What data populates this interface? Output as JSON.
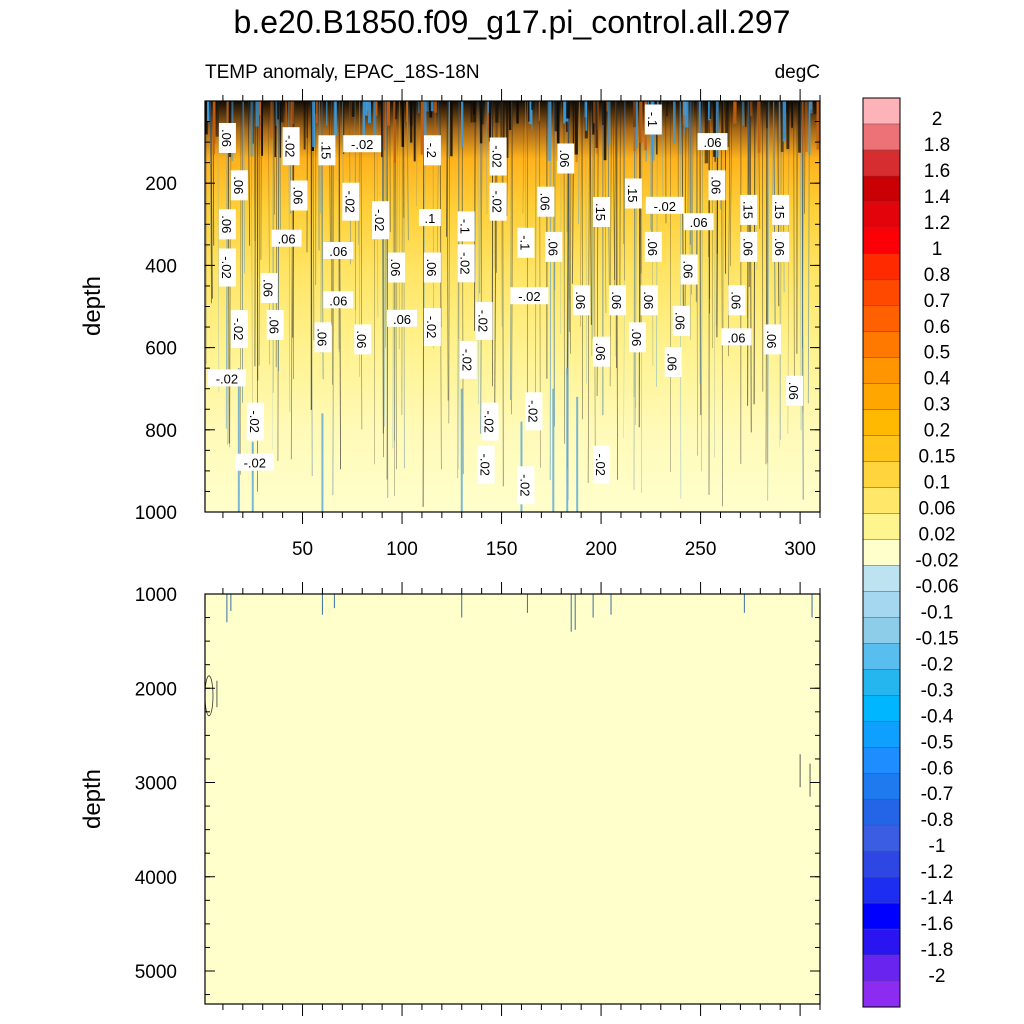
{
  "title": "b.e20.B1850.f09_g17.pi_control.all.297",
  "subtitle_left": "TEMP anomaly, EPAC_18S-18N",
  "subtitle_right": "degC",
  "chart_data": [
    {
      "type": "heatmap",
      "panel": "upper",
      "ylabel": "depth",
      "xlim": [
        1,
        310
      ],
      "ylim": [
        1000,
        0
      ],
      "x_ticks": [
        50,
        100,
        150,
        200,
        250,
        300
      ],
      "y_ticks": [
        200,
        400,
        600,
        800,
        1000
      ],
      "contour_labels": [
        {
          "text": ".06",
          "x": 12,
          "y": 90
        },
        {
          "text": "-.02",
          "x": 44,
          "y": 110
        },
        {
          "text": ".15",
          "x": 62,
          "y": 120
        },
        {
          "text": "-.02",
          "x": 80,
          "y": 105
        },
        {
          "text": "-.2",
          "x": 115,
          "y": 120
        },
        {
          "text": "-.02",
          "x": 148,
          "y": 135
        },
        {
          "text": ".06",
          "x": 182,
          "y": 140
        },
        {
          "text": "-.1",
          "x": 226,
          "y": 45
        },
        {
          "text": ".06",
          "x": 256,
          "y": 100
        },
        {
          "text": ".06",
          "x": 18,
          "y": 205
        },
        {
          "text": ".06",
          "x": 48,
          "y": 230
        },
        {
          "text": "-.02",
          "x": 74,
          "y": 245
        },
        {
          "text": "-.02",
          "x": 89,
          "y": 290
        },
        {
          "text": ".1",
          "x": 114,
          "y": 285
        },
        {
          "text": "-.02",
          "x": 148,
          "y": 245
        },
        {
          "text": ".06",
          "x": 172,
          "y": 245
        },
        {
          "text": ".15",
          "x": 200,
          "y": 270
        },
        {
          "text": ".15",
          "x": 216,
          "y": 225
        },
        {
          "text": "-.02",
          "x": 232,
          "y": 255
        },
        {
          "text": ".06",
          "x": 258,
          "y": 205
        },
        {
          "text": ".15",
          "x": 274,
          "y": 265
        },
        {
          "text": ".15",
          "x": 290,
          "y": 265
        },
        {
          "text": ".06",
          "x": 12,
          "y": 300
        },
        {
          "text": ".06",
          "x": 42,
          "y": 335
        },
        {
          "text": "-.1",
          "x": 132,
          "y": 305
        },
        {
          "text": "-.1",
          "x": 162,
          "y": 345
        },
        {
          "text": ".06",
          "x": 176,
          "y": 355
        },
        {
          "text": ".06",
          "x": 226,
          "y": 355
        },
        {
          "text": ".06",
          "x": 249,
          "y": 295
        },
        {
          "text": ".06",
          "x": 274,
          "y": 355
        },
        {
          "text": ".06",
          "x": 290,
          "y": 355
        },
        {
          "text": "-.02",
          "x": 12,
          "y": 405
        },
        {
          "text": ".06",
          "x": 33,
          "y": 455
        },
        {
          "text": ".06",
          "x": 68,
          "y": 365
        },
        {
          "text": ".06",
          "x": 97,
          "y": 405
        },
        {
          "text": ".06",
          "x": 115,
          "y": 405
        },
        {
          "text": "-.02",
          "x": 132,
          "y": 395
        },
        {
          "text": ".06",
          "x": 244,
          "y": 410
        },
        {
          "text": "-.02",
          "x": 164,
          "y": 475
        },
        {
          "text": ".06",
          "x": 190,
          "y": 485
        },
        {
          "text": ".06",
          "x": 208,
          "y": 485
        },
        {
          "text": ".06",
          "x": 224,
          "y": 485
        },
        {
          "text": ".06",
          "x": 268,
          "y": 485
        },
        {
          "text": ".06",
          "x": 68,
          "y": 485
        },
        {
          "text": "-.02",
          "x": 18,
          "y": 555
        },
        {
          "text": ".06",
          "x": 36,
          "y": 545
        },
        {
          "text": ".06",
          "x": 60,
          "y": 575
        },
        {
          "text": ".06",
          "x": 80,
          "y": 580
        },
        {
          "text": ".06",
          "x": 100,
          "y": 530
        },
        {
          "text": "-.02",
          "x": 115,
          "y": 550
        },
        {
          "text": "-.02",
          "x": 141,
          "y": 535
        },
        {
          "text": ".06",
          "x": 218,
          "y": 575
        },
        {
          "text": ".06",
          "x": 240,
          "y": 535
        },
        {
          "text": ".06",
          "x": 268,
          "y": 575
        },
        {
          "text": ".06",
          "x": 286,
          "y": 580
        },
        {
          "text": "-.02",
          "x": 133,
          "y": 630
        },
        {
          "text": ".06",
          "x": 200,
          "y": 610
        },
        {
          "text": ".06",
          "x": 236,
          "y": 635
        },
        {
          "text": "-.02",
          "x": 12,
          "y": 675
        },
        {
          "text": ".06",
          "x": 297,
          "y": 705
        },
        {
          "text": "-.02",
          "x": 26,
          "y": 780
        },
        {
          "text": "-.02",
          "x": 144,
          "y": 780
        },
        {
          "text": "-.02",
          "x": 166,
          "y": 755
        },
        {
          "text": "-.02",
          "x": 26,
          "y": 880
        },
        {
          "text": "-.02",
          "x": 142,
          "y": 885
        },
        {
          "text": "-.02",
          "x": 200,
          "y": 885
        },
        {
          "text": "-.02",
          "x": 162,
          "y": 935
        }
      ]
    },
    {
      "type": "heatmap",
      "panel": "lower",
      "ylabel": "depth",
      "xlim": [
        1,
        310
      ],
      "ylim": [
        5350,
        1000
      ],
      "y_ticks": [
        1000,
        2000,
        3000,
        4000,
        5000
      ]
    }
  ],
  "colorbar": {
    "labels": [
      "2",
      "1.8",
      "1.6",
      "1.4",
      "1.2",
      "1",
      "0.8",
      "0.7",
      "0.6",
      "0.5",
      "0.4",
      "0.3",
      "0.2",
      "0.15",
      "0.1",
      "0.06",
      "0.02",
      "-0.02",
      "-0.06",
      "-0.1",
      "-0.15",
      "-0.2",
      "-0.3",
      "-0.4",
      "-0.5",
      "-0.6",
      "-0.7",
      "-0.8",
      "-1",
      "-1.2",
      "-1.4",
      "-1.6",
      "-1.8",
      "-2"
    ],
    "colors": [
      "#fdb3b8",
      "#ec7278",
      "#d62d30",
      "#c80006",
      "#e3040b",
      "#fb0006",
      "#ff2a00",
      "#ff4800",
      "#ff6000",
      "#ff7900",
      "#ff9500",
      "#ffa600",
      "#ffb900",
      "#ffc51a",
      "#ffd43c",
      "#ffe76a",
      "#fff58e",
      "#ffffcb",
      "#bde3f1",
      "#a5d8f0",
      "#8ecde9",
      "#58bef0",
      "#26b6ef",
      "#00b6ff",
      "#0fa0ff",
      "#1e8dff",
      "#1e7aef",
      "#2464e6",
      "#3a5de3",
      "#2e46e3",
      "#1e2ef0",
      "#0000ff",
      "#2a14ef",
      "#6a24ef",
      "#8c2cf0"
    ],
    "range_colors": {
      "deep_anomaly": "#000000",
      "background": "#ffffcc"
    }
  }
}
